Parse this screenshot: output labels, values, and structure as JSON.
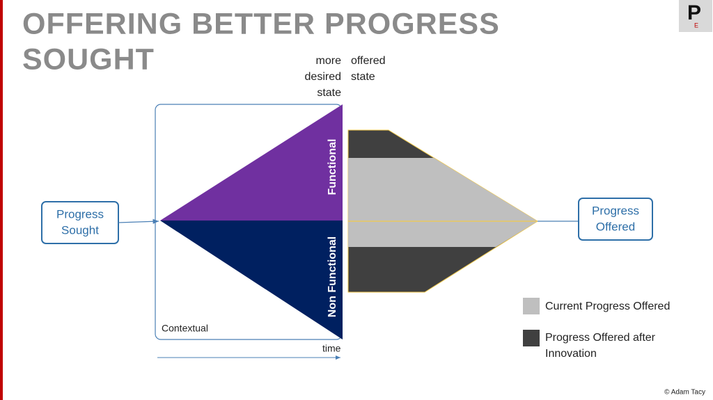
{
  "title": {
    "lines": [
      "OFFERING BETTER PROGRESS",
      "SOUGHT"
    ]
  },
  "logo": {
    "letter": "P",
    "sub": "E"
  },
  "top_labels": {
    "left": [
      "more",
      "desired",
      "state"
    ],
    "right": [
      "offered",
      "state"
    ]
  },
  "left_box": {
    "lines": [
      "Progress",
      "Sought"
    ]
  },
  "right_box": {
    "lines": [
      "Progress",
      "Offered"
    ]
  },
  "triangle_labels": {
    "top": "Functional",
    "bottom": "Non Functional",
    "corner": "Contextual"
  },
  "axis_label": "time",
  "legend": {
    "items": [
      {
        "lines": [
          "Current Progress Offered"
        ]
      },
      {
        "lines": [
          "Progress Offered after",
          "Innovation"
        ]
      }
    ]
  },
  "copyright": "© Adam Tacy"
}
